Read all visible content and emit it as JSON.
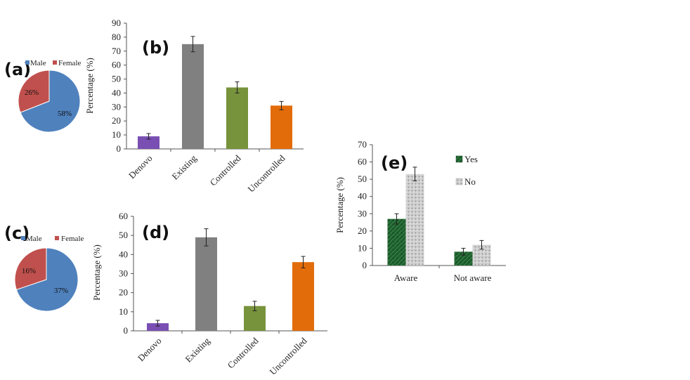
{
  "chart_data": [
    {
      "id": "a",
      "panel_label": "(a)",
      "type": "pie",
      "legend": [
        "Male",
        "Female"
      ],
      "slices": [
        {
          "label": "Male",
          "value": 58,
          "text": "58%"
        },
        {
          "label": "Female",
          "value": 26,
          "text": "26%"
        }
      ],
      "colors": [
        "#4f81bd",
        "#c0504d"
      ]
    },
    {
      "id": "b",
      "panel_label": "(b)",
      "type": "bar",
      "ylabel": "Percentage (%)",
      "ylim": [
        0,
        90
      ],
      "yticks": [
        "0",
        "10",
        "20",
        "30",
        "40",
        "50",
        "60",
        "70",
        "80",
        "90"
      ],
      "categories": [
        "Denovo",
        "Existing",
        "Controlled",
        "Uncontrolled"
      ],
      "values": [
        9,
        75,
        44,
        31
      ],
      "errors": [
        2,
        5.5,
        4,
        3
      ],
      "colors": [
        "#7a4fb3",
        "#808080",
        "#77933c",
        "#e36c0a"
      ]
    },
    {
      "id": "c",
      "panel_label": "(c)",
      "type": "pie",
      "legend": [
        "Male",
        "Female"
      ],
      "slices": [
        {
          "label": "Male",
          "value": 37,
          "text": "37%"
        },
        {
          "label": "Female",
          "value": 16,
          "text": "16%"
        }
      ],
      "colors": [
        "#4f81bd",
        "#c0504d"
      ]
    },
    {
      "id": "d",
      "panel_label": "(d)",
      "type": "bar",
      "ylabel": "Percentage (%)",
      "ylim": [
        0,
        60
      ],
      "yticks": [
        "0",
        "10",
        "20",
        "30",
        "40",
        "50",
        "60"
      ],
      "categories": [
        "Denovo",
        "Existing",
        "Controlled",
        "Uncontrolled"
      ],
      "values": [
        4,
        49,
        13,
        36
      ],
      "errors": [
        1.5,
        4.5,
        2.5,
        3
      ],
      "colors": [
        "#7a4fb3",
        "#808080",
        "#77933c",
        "#e36c0a"
      ]
    },
    {
      "id": "e",
      "panel_label": "(e)",
      "type": "bar",
      "ylabel": "Percentage (%)",
      "ylim": [
        0,
        70
      ],
      "yticks": [
        "0",
        "10",
        "20",
        "30",
        "40",
        "50",
        "60",
        "70"
      ],
      "categories": [
        "Aware",
        "Not aware"
      ],
      "series": [
        {
          "name": "Yes",
          "values": [
            27,
            8
          ],
          "errors": [
            3,
            2
          ],
          "color": "#1f5e2e"
        },
        {
          "name": "No",
          "values": [
            53,
            12
          ],
          "errors": [
            4,
            2.5
          ],
          "color": "#c8c8c8"
        }
      ]
    }
  ]
}
